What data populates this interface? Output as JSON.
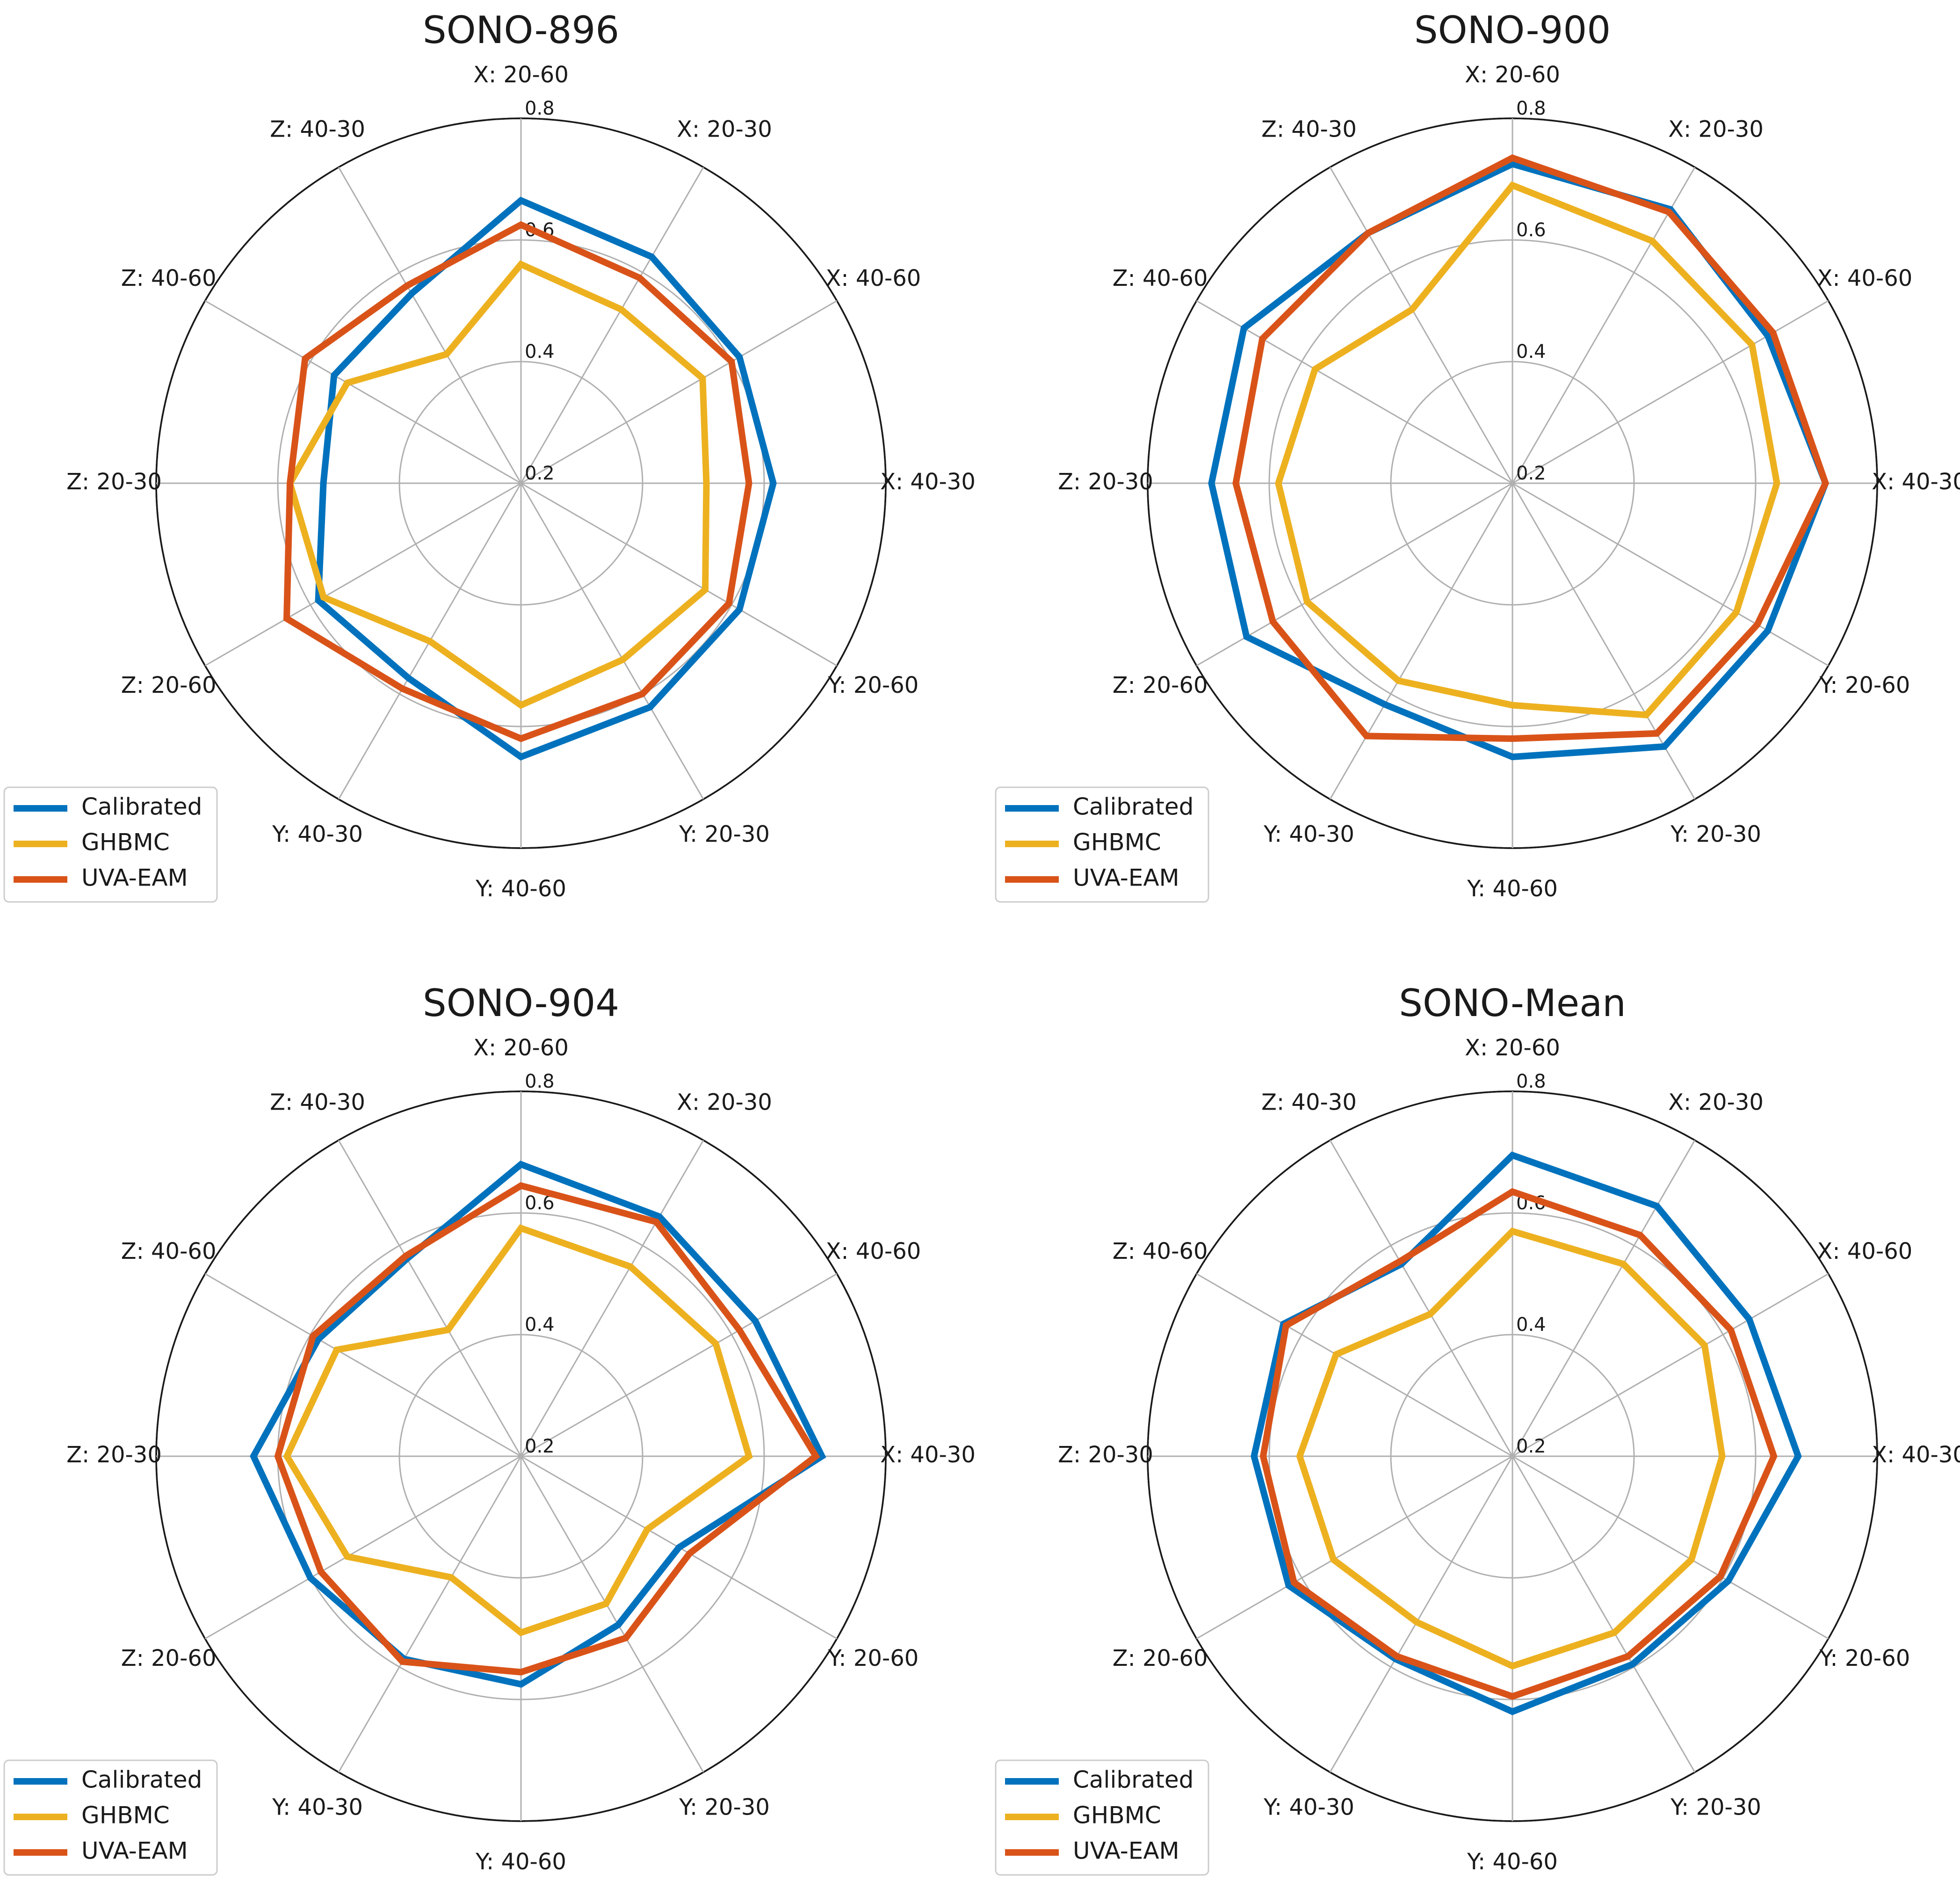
{
  "figure": {
    "colors": {
      "Calibrated": "#0072BD",
      "GHBMC": "#EDB120",
      "UVA-EAM": "#D95319"
    }
  },
  "chart_data": [
    {
      "type": "radar",
      "title": "SONO-896",
      "categories": [
        "X: 20-60",
        "X: 20-30",
        "X: 40-60",
        "X: 40-30",
        "Y: 20-60",
        "Y: 20-30",
        "Y: 40-60",
        "Y: 40-30",
        "Z: 20-60",
        "Z: 20-30",
        "Z: 40-60",
        "Z: 40-30"
      ],
      "rlim": [
        0.2,
        0.8
      ],
      "rticks": [
        "0.2",
        "0.4",
        "0.6",
        "0.8"
      ],
      "rtick_values": [
        0.2,
        0.4,
        0.6,
        0.8
      ],
      "legend": [
        "Calibrated",
        "GHBMC",
        "UVA-EAM"
      ],
      "legend_position": "bottom-left",
      "series": [
        {
          "name": "Calibrated",
          "values": [
            0.665,
            0.63,
            0.615,
            0.615,
            0.615,
            0.625,
            0.65,
            0.57,
            0.585,
            0.525,
            0.555,
            0.56
          ]
        },
        {
          "name": "GHBMC",
          "values": [
            0.56,
            0.53,
            0.545,
            0.505,
            0.55,
            0.535,
            0.565,
            0.5,
            0.575,
            0.58,
            0.53,
            0.445
          ]
        },
        {
          "name": "UVA-EAM",
          "values": [
            0.625,
            0.59,
            0.6,
            0.575,
            0.595,
            0.6,
            0.62,
            0.59,
            0.645,
            0.58,
            0.61,
            0.575
          ]
        }
      ]
    },
    {
      "type": "radar",
      "title": "SONO-900",
      "categories": [
        "X: 20-60",
        "X: 20-30",
        "X: 40-60",
        "X: 40-30",
        "Y: 20-60",
        "Y: 20-30",
        "Y: 40-60",
        "Y: 40-30",
        "Z: 20-60",
        "Z: 20-30",
        "Z: 40-60",
        "Z: 40-30"
      ],
      "rlim": [
        0.2,
        0.8
      ],
      "rticks": [
        "0.2",
        "0.4",
        "0.6",
        "0.8"
      ],
      "rtick_values": [
        0.2,
        0.4,
        0.6,
        0.8
      ],
      "legend": [
        "Calibrated",
        "GHBMC",
        "UVA-EAM"
      ],
      "legend_position": "bottom-left",
      "series": [
        {
          "name": "Calibrated",
          "values": [
            0.725,
            0.72,
            0.685,
            0.715,
            0.685,
            0.7,
            0.65,
            0.62,
            0.705,
            0.695,
            0.71,
            0.675
          ]
        },
        {
          "name": "GHBMC",
          "values": [
            0.69,
            0.66,
            0.655,
            0.635,
            0.625,
            0.64,
            0.565,
            0.575,
            0.59,
            0.585,
            0.575,
            0.53
          ]
        },
        {
          "name": "UVA-EAM",
          "values": [
            0.735,
            0.715,
            0.695,
            0.715,
            0.665,
            0.675,
            0.62,
            0.68,
            0.655,
            0.655,
            0.675,
            0.675
          ]
        }
      ]
    },
    {
      "type": "radar",
      "title": "SONO-904",
      "categories": [
        "X: 20-60",
        "X: 20-30",
        "X: 40-60",
        "X: 40-30",
        "Y: 20-60",
        "Y: 20-30",
        "Y: 40-60",
        "Y: 40-30",
        "Z: 20-60",
        "Z: 20-30",
        "Z: 40-60",
        "Z: 40-30"
      ],
      "rlim": [
        0.2,
        0.8
      ],
      "rticks": [
        "0.2",
        "0.4",
        "0.6",
        "0.8"
      ],
      "rtick_values": [
        0.2,
        0.4,
        0.6,
        0.8
      ],
      "legend": [
        "Calibrated",
        "GHBMC",
        "UVA-EAM"
      ],
      "legend_position": "bottom-left",
      "series": [
        {
          "name": "Calibrated",
          "values": [
            0.68,
            0.655,
            0.645,
            0.695,
            0.5,
            0.52,
            0.575,
            0.585,
            0.6,
            0.64,
            0.585,
            0.575
          ]
        },
        {
          "name": "GHBMC",
          "values": [
            0.575,
            0.56,
            0.57,
            0.575,
            0.44,
            0.48,
            0.49,
            0.43,
            0.53,
            0.585,
            0.55,
            0.44
          ]
        },
        {
          "name": "UVA-EAM",
          "values": [
            0.645,
            0.645,
            0.615,
            0.685,
            0.52,
            0.545,
            0.555,
            0.59,
            0.58,
            0.6,
            0.595,
            0.58
          ]
        }
      ]
    },
    {
      "type": "radar",
      "title": "SONO-Mean",
      "categories": [
        "X: 20-60",
        "X: 20-30",
        "X: 40-60",
        "X: 40-30",
        "Y: 20-60",
        "Y: 20-30",
        "Y: 40-60",
        "Y: 40-30",
        "Z: 20-60",
        "Z: 20-30",
        "Z: 40-60",
        "Z: 40-30"
      ],
      "rlim": [
        0.2,
        0.8
      ],
      "rticks": [
        "0.2",
        "0.4",
        "0.6",
        "0.8"
      ],
      "rtick_values": [
        0.2,
        0.4,
        0.6,
        0.8
      ],
      "legend": [
        "Calibrated",
        "GHBMC",
        "UVA-EAM"
      ],
      "legend_position": "bottom-left",
      "series": [
        {
          "name": "Calibrated",
          "values": [
            0.695,
            0.675,
            0.65,
            0.67,
            0.61,
            0.595,
            0.62,
            0.585,
            0.625,
            0.625,
            0.635,
            0.565
          ]
        },
        {
          "name": "GHBMC",
          "values": [
            0.57,
            0.565,
            0.565,
            0.545,
            0.54,
            0.535,
            0.545,
            0.515,
            0.54,
            0.55,
            0.535,
            0.47
          ]
        },
        {
          "name": "UVA-EAM",
          "values": [
            0.635,
            0.62,
            0.615,
            0.63,
            0.595,
            0.58,
            0.595,
            0.58,
            0.615,
            0.61,
            0.63,
            0.57
          ]
        }
      ]
    }
  ]
}
